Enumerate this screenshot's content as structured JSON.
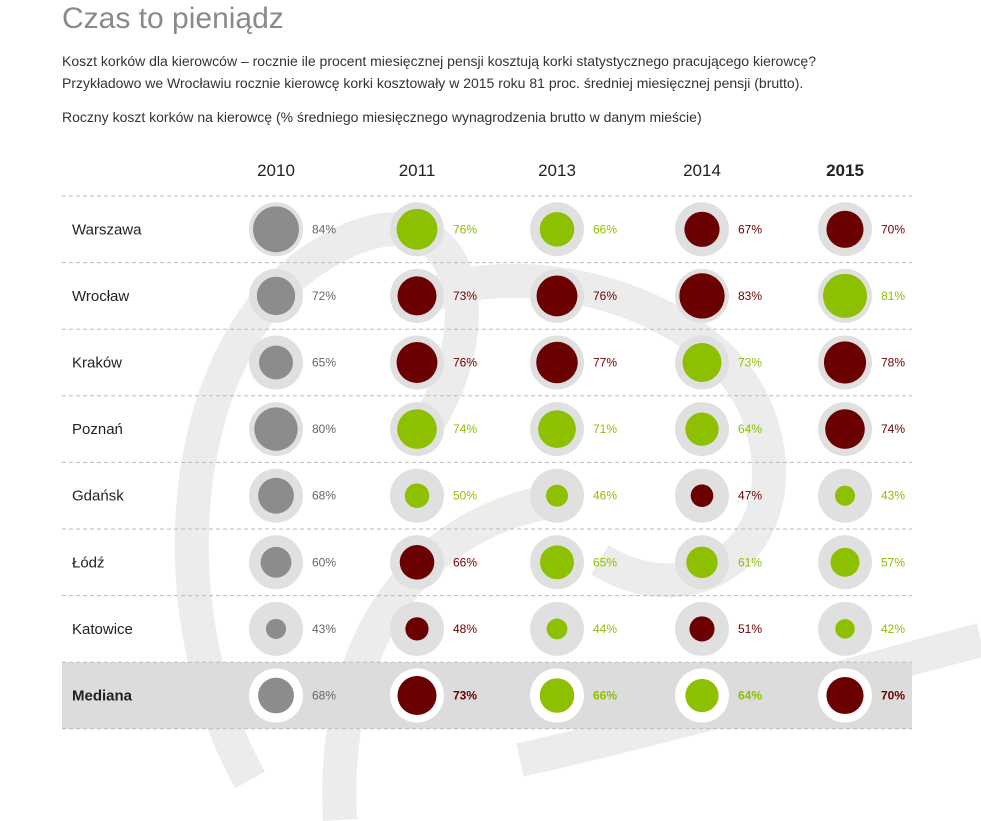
{
  "title": "Czas to pieniądz",
  "description_line1": "Koszt korków dla kierowców – rocznie ile procent miesięcznej pensji kosztują korki statystycznego pracującego kierowcę?",
  "description_line2": "Przykładowo we Wrocławiu rocznie kierowcę korki kosztowały w 2015 roku 81 proc. średniej miesięcznej pensji (brutto).",
  "chart_data": {
    "type": "table",
    "title": "Roczny koszt korków na kierowcę (% średniego miesięcznego wynagrodzenia brutto w danym mieście)",
    "years": [
      "2010",
      "2011",
      "2013",
      "2014",
      "2015"
    ],
    "colors": {
      "base": "#8c8c8c",
      "decrease": "#8cc000",
      "increase": "#6b0000"
    },
    "rows": [
      {
        "city": "Warszawa",
        "values": [
          84,
          76,
          66,
          67,
          70
        ],
        "trend": [
          "base",
          "decrease",
          "decrease",
          "increase",
          "increase"
        ]
      },
      {
        "city": "Wrocław",
        "values": [
          72,
          73,
          76,
          83,
          81
        ],
        "trend": [
          "base",
          "increase",
          "increase",
          "increase",
          "decrease"
        ]
      },
      {
        "city": "Kraków",
        "values": [
          65,
          76,
          77,
          73,
          78
        ],
        "trend": [
          "base",
          "increase",
          "increase",
          "decrease",
          "increase"
        ]
      },
      {
        "city": "Poznań",
        "values": [
          80,
          74,
          71,
          64,
          74
        ],
        "trend": [
          "base",
          "decrease",
          "decrease",
          "decrease",
          "increase"
        ]
      },
      {
        "city": "Gdańsk",
        "values": [
          68,
          50,
          46,
          47,
          43
        ],
        "trend": [
          "base",
          "decrease",
          "decrease",
          "increase",
          "decrease"
        ]
      },
      {
        "city": "Łódź",
        "values": [
          60,
          66,
          65,
          61,
          57
        ],
        "trend": [
          "base",
          "increase",
          "decrease",
          "decrease",
          "decrease"
        ]
      },
      {
        "city": "Katowice",
        "values": [
          43,
          48,
          44,
          51,
          42
        ],
        "trend": [
          "base",
          "increase",
          "decrease",
          "increase",
          "decrease"
        ]
      },
      {
        "city": "Mediana",
        "values": [
          68,
          73,
          66,
          64,
          70
        ],
        "trend": [
          "base",
          "increase",
          "decrease",
          "decrease",
          "increase"
        ],
        "highlight": true
      }
    ]
  }
}
